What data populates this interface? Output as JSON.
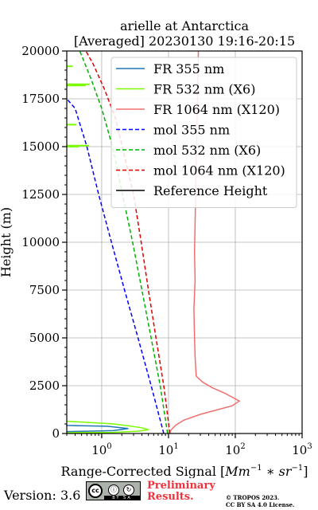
{
  "chart_data": {
    "type": "line",
    "title_line1": "arielle at Antarctica",
    "title_line2": "[Averaged] 20230130 19:16-20:15",
    "ylabel": "Height (m)",
    "xlabel_main": "Range-Corrected Signal [",
    "xlabel_math": "Mm",
    "xlabel_sup1": "−1",
    "xlabel_mid": " ∗ ",
    "xlabel_math2": "sr",
    "xlabel_sup2": "−1",
    "xlabel_end": "]",
    "x_scale": "log",
    "xlim": [
      0.3,
      1000
    ],
    "ylim": [
      0,
      20000
    ],
    "x_ticks": [
      {
        "base": "10",
        "exp": "0",
        "value": 1
      },
      {
        "base": "10",
        "exp": "1",
        "value": 10
      },
      {
        "base": "10",
        "exp": "2",
        "value": 100
      },
      {
        "base": "10",
        "exp": "3",
        "value": 1000
      }
    ],
    "y_ticks": [
      "0",
      "2500",
      "5000",
      "7500",
      "10000",
      "12500",
      "15000",
      "17500",
      "20000"
    ],
    "grid": true,
    "legend_position": "top-right",
    "series": [
      {
        "name": "FR 355 nm",
        "color": "#1f77b4",
        "style": "solid",
        "x": [
          0.3,
          1.5,
          2.5,
          1.2,
          0.3,
          0.3
        ],
        "y": [
          100,
          150,
          260,
          380,
          420,
          460
        ]
      },
      {
        "name": "FR 532 nm (X6)",
        "color": "#7cfc00",
        "style": "solid",
        "x": [
          0.3,
          1.5,
          3.5,
          5.0,
          4.0,
          2.5,
          1.5,
          0.8,
          0.3
        ],
        "y": [
          40,
          60,
          120,
          200,
          300,
          400,
          500,
          560,
          640
        ]
      },
      {
        "name": "FR 1064 nm (X120)",
        "color": "#f07070",
        "style": "solid",
        "x": [
          10.2,
          11,
          13,
          17,
          30,
          55,
          90,
          115,
          70,
          45,
          32,
          26,
          25,
          24.5,
          24,
          25,
          24.5,
          25,
          25.5,
          26,
          26.5,
          27,
          27.5,
          28
        ],
        "y": [
          0,
          200,
          450,
          700,
          1000,
          1250,
          1450,
          1700,
          2100,
          2400,
          2700,
          3000,
          4000,
          5000,
          6500,
          8000,
          9500,
          11000,
          12500,
          14000,
          15500,
          17000,
          18500,
          20000
        ]
      },
      {
        "name": "mol 355 nm",
        "color": "#0000ff",
        "style": "dashed",
        "x": [
          8.5,
          5.5,
          3.5,
          2.2,
          1.4,
          0.9,
          0.6,
          0.4,
          0.3
        ],
        "y": [
          0,
          2500,
          5000,
          7500,
          10000,
          12500,
          15000,
          17000,
          17500
        ]
      },
      {
        "name": "mol 532 nm (X6)",
        "color": "#00b000",
        "style": "dashed",
        "x": [
          9.7,
          7.5,
          5.5,
          4.0,
          2.9,
          2.05,
          1.45,
          1.0,
          0.7,
          0.47
        ],
        "y": [
          0,
          2500,
          5000,
          7500,
          10000,
          12500,
          15000,
          17000,
          18500,
          20000
        ]
      },
      {
        "name": "mol 1064 nm (X120)",
        "color": "#dd0000",
        "style": "dashed",
        "x": [
          10.5,
          8.5,
          6.5,
          5.0,
          3.9,
          3.0,
          2.2,
          1.6,
          1.1,
          0.75,
          0.58
        ],
        "y": [
          0,
          2500,
          5000,
          7500,
          10000,
          12500,
          14500,
          16500,
          18000,
          19300,
          20000
        ]
      },
      {
        "name": "Reference Height",
        "color": "#000000",
        "style": "solid",
        "x": [],
        "y": []
      }
    ],
    "noise_532": [
      {
        "x1": 0.3,
        "x2": 0.45,
        "y": 15000
      },
      {
        "x1": 0.3,
        "x2": 0.65,
        "y": 15050
      },
      {
        "x1": 0.3,
        "x2": 0.42,
        "y": 16150
      },
      {
        "x1": 0.3,
        "x2": 0.58,
        "y": 18200
      },
      {
        "x1": 0.3,
        "x2": 0.66,
        "y": 18260
      },
      {
        "x1": 0.3,
        "x2": 0.37,
        "y": 19200
      }
    ]
  },
  "footer": {
    "version": "Version: 3.6",
    "cc_label": "BY  SA",
    "cc_text": "cc",
    "prelim_line1": "Preliminary",
    "prelim_line2": "Results.",
    "license_line1": "© TROPOS 2023.",
    "license_line2": "CC BY SA 4.0 License."
  }
}
